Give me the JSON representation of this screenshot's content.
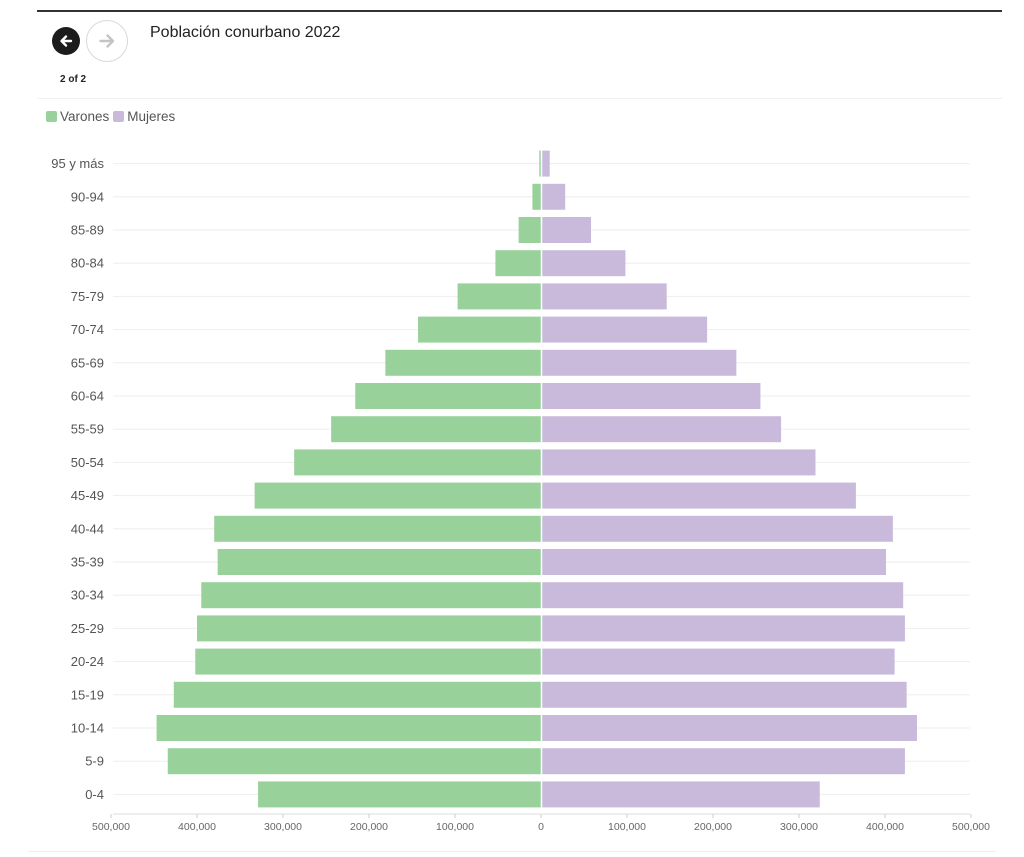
{
  "header": {
    "title": "Población conurbano 2022",
    "pager": "2 of 2",
    "prev_icon": "arrow-left-icon",
    "next_icon": "arrow-right-icon"
  },
  "colors": {
    "varones": "#98d29a",
    "mujeres": "#c9badc",
    "grid": "#eeeeee"
  },
  "chart_data": {
    "type": "bar",
    "orientation": "horizontal-diverging",
    "title": "Población conurbano 2022",
    "legend_position": "top-left",
    "grid": true,
    "categories": [
      "95 y más",
      "90-94",
      "85-89",
      "80-84",
      "75-79",
      "70-74",
      "65-69",
      "60-64",
      "55-59",
      "50-54",
      "45-49",
      "40-44",
      "35-39",
      "30-34",
      "25-29",
      "20-24",
      "15-19",
      "10-14",
      "5-9",
      "0-4"
    ],
    "series": [
      {
        "name": "Varones",
        "side": "left",
        "values": [
          2000,
          10000,
          26000,
          53000,
          97000,
          143000,
          181000,
          216000,
          244000,
          287000,
          333000,
          380000,
          376000,
          395000,
          400000,
          402000,
          427000,
          447000,
          434000,
          329000
        ]
      },
      {
        "name": "Mujeres",
        "side": "right",
        "values": [
          9000,
          27000,
          57000,
          97000,
          145000,
          192000,
          226000,
          254000,
          278000,
          318000,
          365000,
          408000,
          400000,
          420000,
          422000,
          410000,
          424000,
          436000,
          422000,
          323000
        ]
      }
    ],
    "xlim": [
      -500000,
      500000
    ],
    "xticks": [
      -500000,
      -400000,
      -300000,
      -200000,
      -100000,
      0,
      100000,
      200000,
      300000,
      400000,
      500000
    ],
    "xtick_labels": [
      "500,000",
      "400,000",
      "300,000",
      "200,000",
      "100,000",
      "0",
      "100,000",
      "200,000",
      "300,000",
      "400,000",
      "500,000"
    ]
  }
}
